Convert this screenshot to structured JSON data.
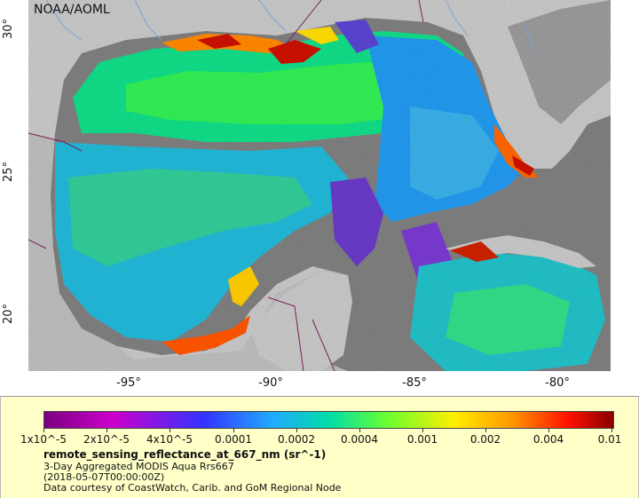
{
  "map": {
    "credit": "NOAA/AOML",
    "lat_ticks": [
      "30°",
      "25°",
      "20°"
    ],
    "lon_ticks": [
      "-95°",
      "-90°",
      "-85°",
      "-80°"
    ],
    "colors": {
      "land": "#c8c8c8",
      "cloud": "#808080",
      "mexico": "#a9a9a9",
      "borders": "#7a1f5a",
      "rivers": "#7aa5d6"
    }
  },
  "legend": {
    "ticks": [
      "1x10^-5",
      "2x10^-5",
      "4x10^-5",
      "0.0001",
      "0.0002",
      "0.0004",
      "0.001",
      "0.002",
      "0.004",
      "0.01"
    ],
    "title": "remote_sensing_reflectance_at_667_nm (sr^-1)",
    "line1": "3-Day Aggregated MODIS Aqua Rrs667",
    "line2": "(2018-05-07T00:00:00Z)",
    "line3": "Data courtesy of CoastWatch, Carib. and GoM Regional Node",
    "colormap": [
      "#7a0080",
      "#cc00cc",
      "#3333ff",
      "#22aaff",
      "#00ddaa",
      "#66ff33",
      "#ffee00",
      "#ff9900",
      "#ff1100",
      "#880000"
    ]
  }
}
